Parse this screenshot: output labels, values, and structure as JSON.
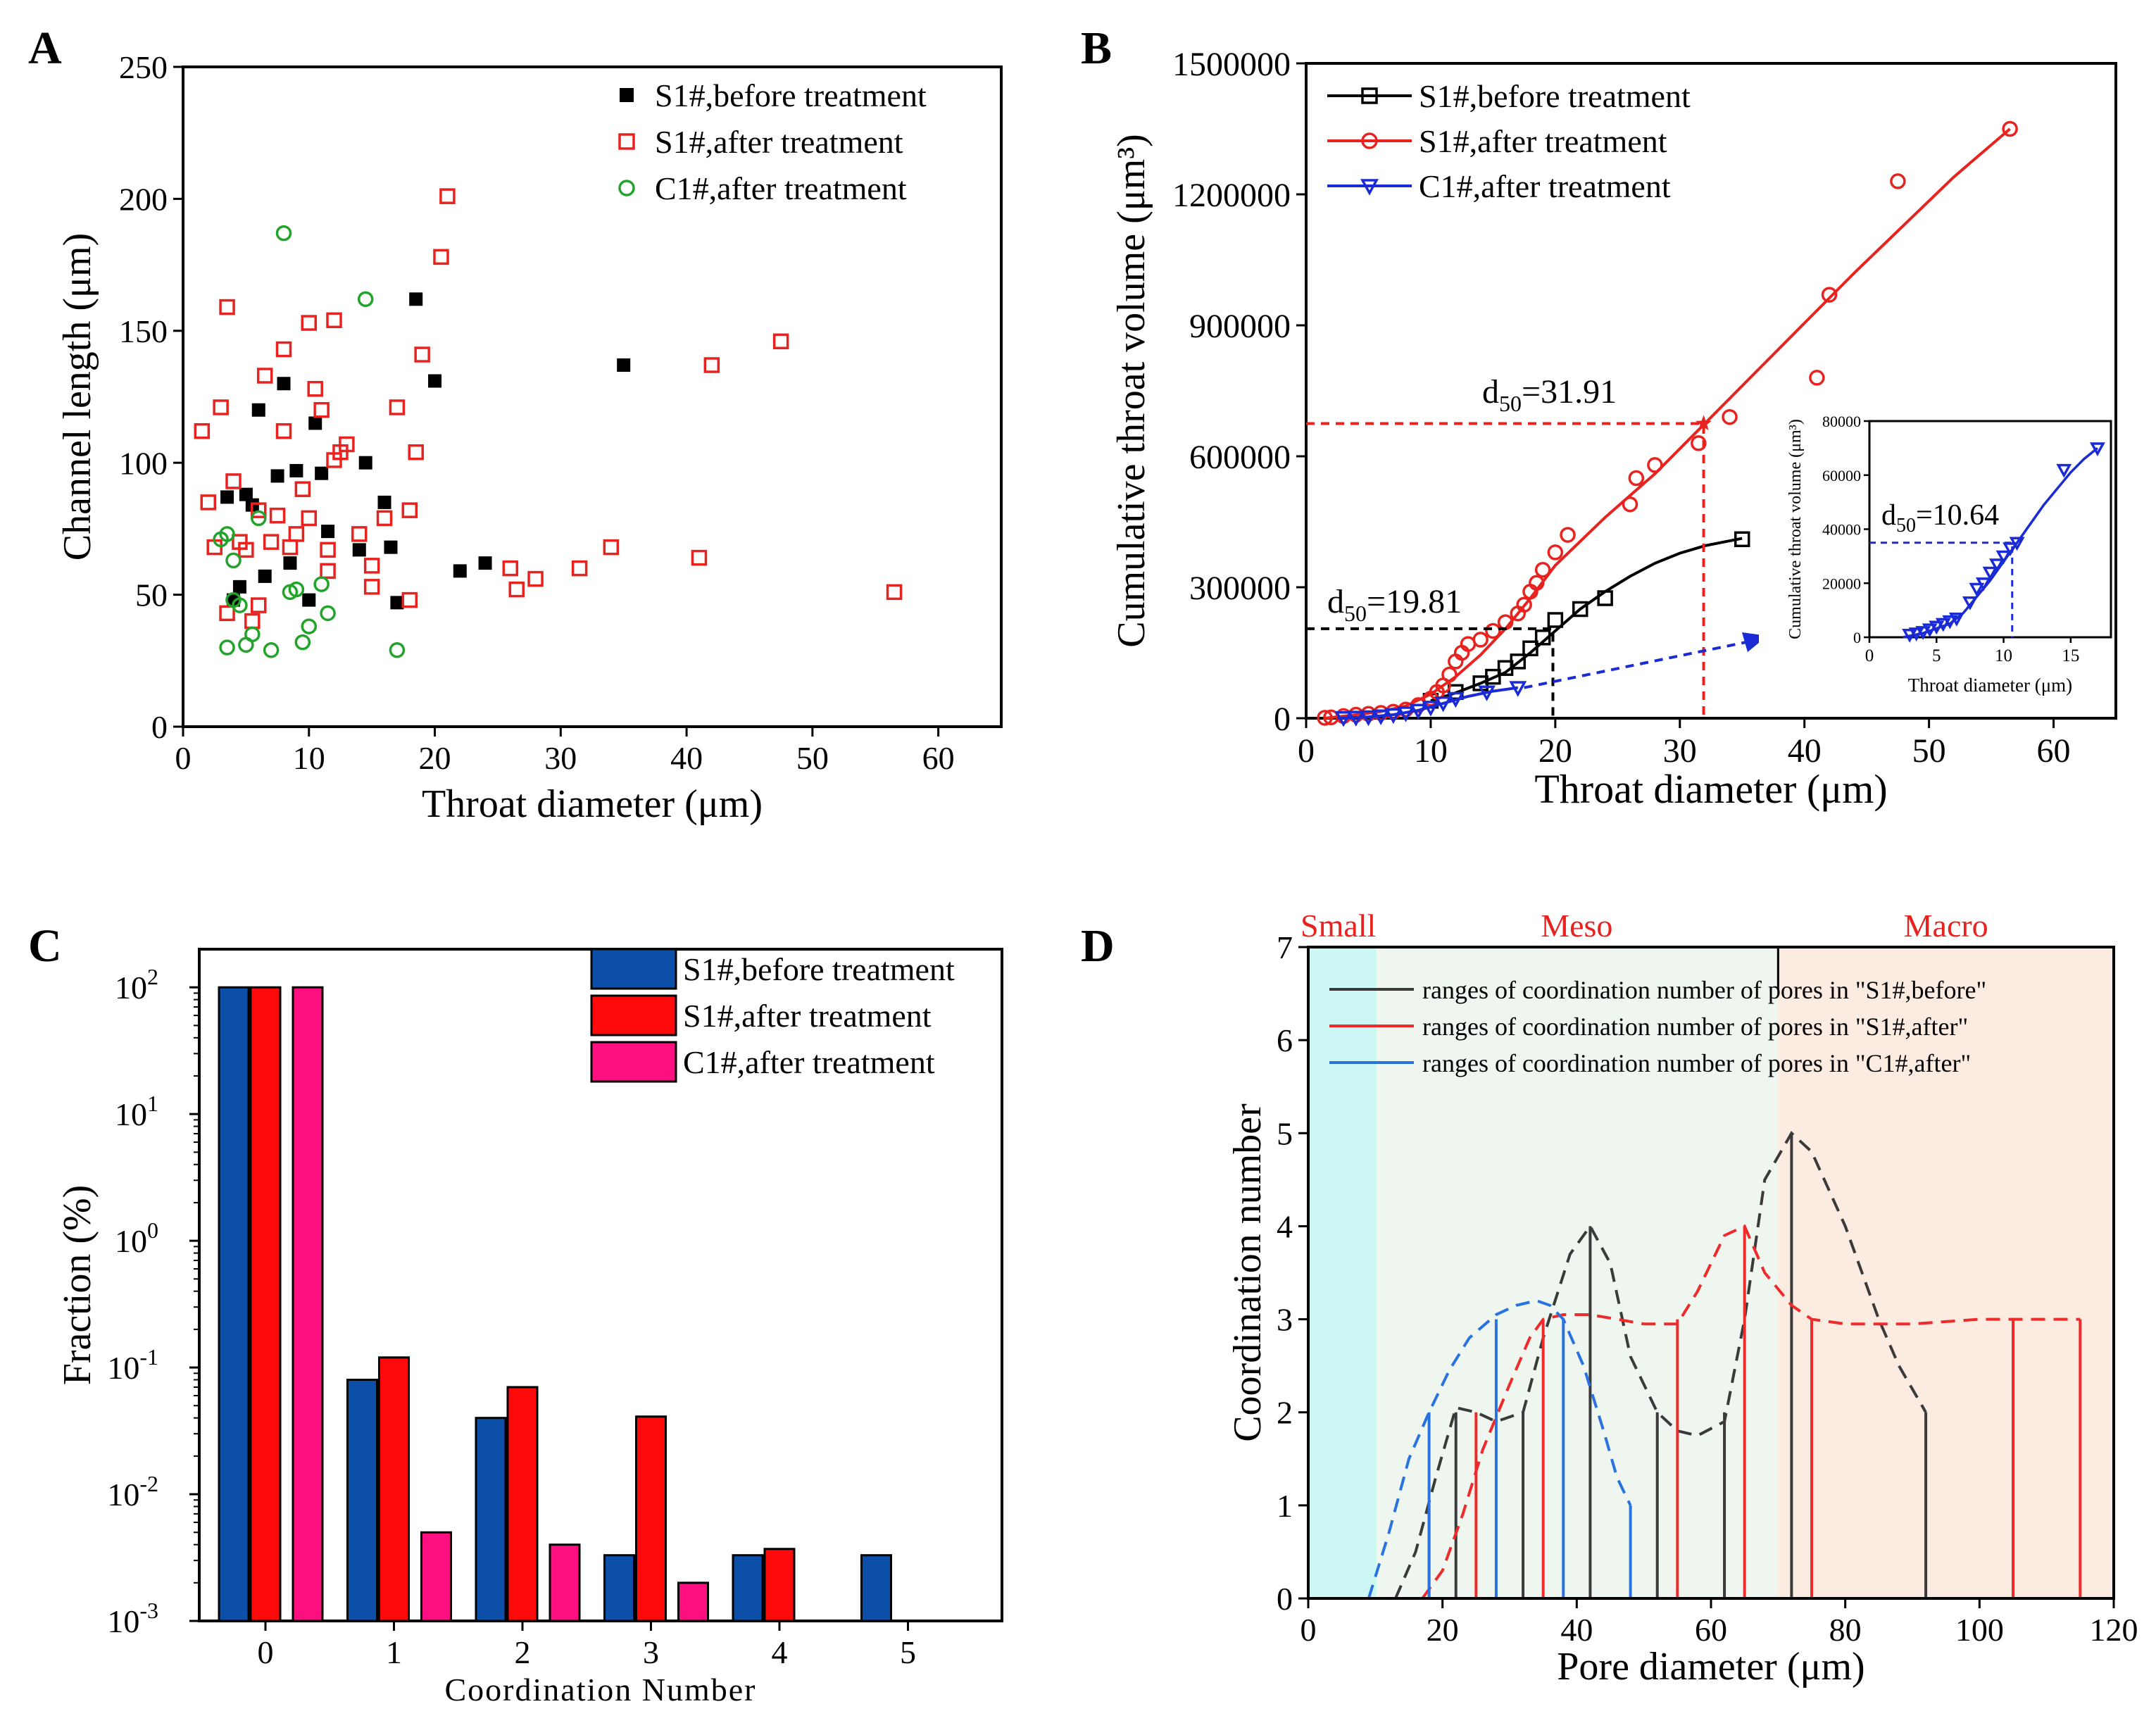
{
  "panel_labels": {
    "a": "A",
    "b": "B",
    "c": "C",
    "d": "D"
  },
  "colors": {
    "black": "#000000",
    "red": "#e8231f",
    "green": "#22a32a",
    "blue": "#1a2bd6",
    "bar_blue": "#0c4fa8",
    "bar_red": "#ff0a0a",
    "bar_pink": "#ff0f7f",
    "dash_gray": "#3a3a3a",
    "dash_red": "#ee2a2a",
    "dash_blue": "#2a72e0",
    "small_bg": "#cdf7f4",
    "meso_bg": "#eef6ef",
    "macro_bg": "#fbebe0"
  },
  "chart_data": [
    {
      "id": "A",
      "type": "scatter",
      "xlabel": "Throat diameter (μm)",
      "ylabel": "Channel length (μm)",
      "xlim": [
        0,
        65
      ],
      "ylim": [
        0,
        250
      ],
      "xticks": [
        0,
        10,
        20,
        30,
        40,
        50,
        60
      ],
      "yticks": [
        0,
        50,
        100,
        150,
        200,
        250
      ],
      "series": [
        {
          "name": "S1#,before treatment",
          "marker": "filled-square",
          "color": "#000000",
          "x": [
            3.5,
            4,
            4.5,
            5,
            5.5,
            6,
            6.5,
            7.5,
            8,
            8.5,
            9,
            10,
            10.5,
            11,
            11.5,
            14,
            14.5,
            16,
            16.5,
            17,
            18.5,
            20,
            22,
            24,
            35
          ],
          "y": [
            87,
            48,
            53,
            88,
            84,
            120,
            57,
            95,
            130,
            62,
            97,
            48,
            115,
            96,
            74,
            67,
            100,
            85,
            68,
            47,
            162,
            131,
            59,
            62,
            137
          ]
        },
        {
          "name": "S1#,after treatment",
          "marker": "open-square",
          "color": "#e8231f",
          "x": [
            1.5,
            2,
            2.5,
            3,
            3.5,
            3.5,
            4,
            4.5,
            5,
            5.5,
            6,
            6,
            6.5,
            7,
            7.5,
            8,
            8,
            8.5,
            9,
            9.5,
            10,
            10,
            10.5,
            11,
            11.5,
            11.5,
            12,
            12,
            12.5,
            13,
            14,
            15,
            15,
            16,
            17,
            18,
            18,
            18.5,
            19,
            20.5,
            21,
            26,
            26.5,
            28,
            31.5,
            34,
            41,
            42,
            47.5,
            56.5
          ],
          "y": [
            112,
            85,
            68,
            121,
            159,
            43,
            93,
            70,
            67,
            40,
            46,
            82,
            133,
            70,
            80,
            143,
            112,
            68,
            73,
            90,
            79,
            153,
            128,
            120,
            67,
            59,
            154,
            101,
            104,
            107,
            73,
            61,
            53,
            79,
            121,
            82,
            48,
            104,
            141,
            178,
            201,
            60,
            52,
            56,
            60,
            68,
            64,
            137,
            146,
            51
          ]
        },
        {
          "name": "C1#,after treatment",
          "marker": "open-circle",
          "color": "#22a32a",
          "x": [
            3,
            3.5,
            3.5,
            4,
            4,
            4.5,
            5,
            5.5,
            6,
            7,
            8,
            8.5,
            9,
            9.5,
            10,
            11,
            11.5,
            14.5,
            17
          ],
          "y": [
            71,
            30,
            73,
            63,
            48,
            46,
            31,
            35,
            79,
            29,
            187,
            51,
            52,
            32,
            38,
            54,
            43,
            162,
            29
          ]
        }
      ]
    },
    {
      "id": "B",
      "type": "line",
      "xlabel": "Throat diameter (μm)",
      "ylabel": "Cumulative throat volume (μm³)",
      "xlim": [
        0,
        65
      ],
      "ylim": [
        0,
        1500000
      ],
      "xticks": [
        0,
        10,
        20,
        30,
        40,
        50,
        60
      ],
      "yticks": [
        0,
        300000,
        600000,
        900000,
        1200000,
        1500000
      ],
      "series": [
        {
          "name": "S1#,before treatment",
          "marker": "open-square",
          "color": "#000000",
          "x": [
            10,
            12,
            14,
            15,
            16,
            17,
            18,
            19,
            20,
            22,
            24,
            35
          ],
          "y": [
            40000,
            60000,
            80000,
            95000,
            115000,
            130000,
            160000,
            185000,
            225000,
            250000,
            275000,
            410000
          ],
          "fit_x": [
            10,
            12,
            14,
            16,
            18,
            20,
            22,
            24,
            26,
            28,
            30,
            32,
            35
          ],
          "fit_y": [
            40000,
            58000,
            80000,
            105000,
            150000,
            200000,
            250000,
            290000,
            325000,
            355000,
            378000,
            395000,
            412000
          ]
        },
        {
          "name": "S1#,after treatment",
          "marker": "open-circle",
          "color": "#e8231f",
          "x": [
            1.5,
            2,
            3,
            4,
            5,
            6,
            7,
            8,
            9,
            10,
            10.5,
            11,
            11.5,
            12,
            12.5,
            13,
            14,
            15,
            16,
            17,
            17.5,
            18,
            18.5,
            19,
            20,
            21,
            26,
            26.5,
            28,
            31.5,
            34,
            41,
            42,
            47.5,
            56.5
          ],
          "y": [
            1000,
            2000,
            5000,
            8000,
            10000,
            12000,
            15000,
            20000,
            30000,
            45000,
            60000,
            75000,
            100000,
            130000,
            150000,
            170000,
            180000,
            200000,
            220000,
            240000,
            260000,
            290000,
            310000,
            340000,
            380000,
            420000,
            490000,
            550000,
            580000,
            630000,
            690000,
            780000,
            970000,
            1230000,
            1350000
          ],
          "fit_x": [
            1.5,
            4,
            6,
            8,
            10,
            12,
            14,
            16,
            18,
            20,
            24,
            28,
            32,
            36,
            40,
            44,
            48,
            52,
            56.5
          ],
          "fit_y": [
            0,
            8000,
            15000,
            28000,
            55000,
            95000,
            145000,
            205000,
            275000,
            350000,
            460000,
            560000,
            675000,
            790000,
            905000,
            1020000,
            1130000,
            1240000,
            1350000
          ]
        },
        {
          "name": "C1#,after treatment",
          "marker": "open-triangle-down",
          "color": "#1a2bd6",
          "x": [
            3,
            4,
            5,
            6,
            7,
            8,
            9,
            10,
            11,
            12,
            14.5,
            17
          ],
          "y": [
            1000,
            2000,
            3000,
            5000,
            8000,
            12000,
            18000,
            25000,
            35000,
            45000,
            60000,
            70000
          ],
          "fit_x": [
            2.5,
            5,
            7,
            9,
            11,
            13,
            15,
            17
          ],
          "fit_y": [
            0,
            3000,
            8000,
            18000,
            34000,
            50000,
            62000,
            70000
          ]
        }
      ],
      "annotations": {
        "d50_s1_before": "d",
        "d50_s1_before_sub": "50",
        "d50_s1_before_val": "=19.81",
        "d50_s1_before_x": 19.81,
        "d50_s1_before_y": 205000,
        "d50_s1_after": "d",
        "d50_s1_after_sub": "50",
        "d50_s1_after_val": "=31.91",
        "d50_s1_after_x": 31.91,
        "d50_s1_after_y": 675000
      },
      "inset": {
        "xlabel": "Throat diameter (μm)",
        "ylabel": "Cumulative throat volume (μm³)",
        "xlim": [
          0,
          18
        ],
        "ylim": [
          0,
          80000
        ],
        "xticks": [
          0,
          5,
          10,
          15
        ],
        "yticks": [
          0,
          20000,
          40000,
          60000,
          80000
        ],
        "x": [
          3,
          3.5,
          4,
          4.5,
          5,
          5.5,
          6,
          6.5,
          7.5,
          8,
          8.5,
          9,
          9.5,
          10,
          10.5,
          11,
          14.5,
          17
        ],
        "y": [
          1000,
          1500,
          2000,
          3000,
          4000,
          5000,
          6000,
          7000,
          13000,
          18000,
          20000,
          24000,
          27000,
          30000,
          33000,
          35000,
          62000,
          70000
        ],
        "fit_x": [
          2.5,
          4,
          6,
          7,
          8,
          9,
          10,
          11,
          12,
          13,
          14,
          15,
          16,
          17
        ],
        "fit_y": [
          0,
          1500,
          5000,
          9000,
          15000,
          21000,
          28000,
          35000,
          42000,
          49000,
          55000,
          61000,
          66000,
          70000
        ],
        "d50": "d",
        "d50_sub": "50",
        "d50_val": "=10.64",
        "d50_x": 10.64,
        "d50_y": 35000
      }
    },
    {
      "id": "C",
      "type": "bar",
      "xlabel": "Coordination Number",
      "ylabel": "Fraction (%)",
      "yscale": "log",
      "categories": [
        "0",
        "1",
        "2",
        "3",
        "4",
        "5"
      ],
      "ylim": [
        0.001,
        200
      ],
      "yticks": [
        {
          "base": "10",
          "exp": "-3"
        },
        {
          "base": "10",
          "exp": "-2"
        },
        {
          "base": "10",
          "exp": "-1"
        },
        {
          "base": "10",
          "exp": "0"
        },
        {
          "base": "10",
          "exp": "1"
        },
        {
          "base": "10",
          "exp": "2"
        }
      ],
      "series": [
        {
          "name": "S1#,before treatment",
          "color": "#0c4fa8",
          "values": [
            100,
            0.08,
            0.04,
            0.0033,
            0.0033,
            0.0033
          ]
        },
        {
          "name": "S1#,after treatment",
          "color": "#ff0a0a",
          "values": [
            100,
            0.12,
            0.07,
            0.041,
            0.0037,
            null
          ]
        },
        {
          "name": "C1#,after treatment",
          "color": "#ff0f7f",
          "values": [
            100,
            0.005,
            0.004,
            0.002,
            null,
            null
          ]
        }
      ]
    },
    {
      "id": "D",
      "type": "line",
      "xlabel": "Pore diameter (μm)",
      "ylabel": "Coordination number",
      "xlim": [
        0,
        120
      ],
      "ylim": [
        0,
        7
      ],
      "xticks": [
        0,
        20,
        40,
        60,
        80,
        100,
        120
      ],
      "yticks": [
        0,
        1,
        2,
        3,
        4,
        5,
        6,
        7
      ],
      "regions": [
        {
          "name": "Small",
          "from": 0,
          "to": 10
        },
        {
          "name": "Meso",
          "from": 10,
          "to": 70
        },
        {
          "name": "Macro",
          "from": 70,
          "to": 120
        }
      ],
      "series": [
        {
          "name": "ranges of coordination number of pores in \"S1#,before\"",
          "color": "#3a3a3a",
          "stems_x": [
            22,
            32,
            42,
            52,
            62,
            72,
            92
          ],
          "stems_y": [
            2,
            2,
            4,
            2,
            2,
            5,
            2
          ],
          "curve_x": [
            13,
            16,
            19,
            22,
            25,
            28,
            32,
            35,
            39,
            42,
            45,
            48,
            52,
            55,
            58,
            62,
            65,
            68,
            72,
            75,
            80,
            85,
            88,
            92
          ],
          "curve_y": [
            0,
            0.5,
            1.3,
            2.05,
            2.0,
            1.9,
            2.0,
            2.8,
            3.7,
            4.0,
            3.6,
            2.6,
            2.0,
            1.8,
            1.75,
            1.9,
            3.0,
            4.5,
            5.0,
            4.8,
            4.0,
            3.0,
            2.5,
            2.0
          ]
        },
        {
          "name": "ranges of coordination number of pores in \"S1#,after\"",
          "color": "#ee2a2a",
          "stems_x": [
            18,
            25,
            35,
            55,
            65,
            75,
            105,
            115
          ],
          "stems_y": [
            1,
            2,
            3,
            3,
            4,
            3,
            3,
            3
          ],
          "curve_x": [
            17,
            20,
            23,
            26,
            30,
            33,
            35,
            38,
            42,
            46,
            50,
            55,
            58,
            62,
            65,
            68,
            72,
            75,
            80,
            90,
            100,
            105,
            115
          ],
          "curve_y": [
            0,
            0.3,
            0.9,
            1.6,
            2.3,
            2.8,
            3.0,
            3.05,
            3.05,
            3.0,
            2.95,
            2.95,
            3.3,
            3.9,
            4.0,
            3.5,
            3.15,
            3.0,
            2.95,
            2.95,
            3.0,
            3.0,
            3.0
          ]
        },
        {
          "name": "ranges of coordination number of pores in \"C1#,after\"",
          "color": "#2a72e0",
          "stems_x": [
            18,
            28,
            38,
            48
          ],
          "stems_y": [
            2,
            3,
            3,
            1
          ],
          "curve_x": [
            9,
            12,
            15,
            18,
            21,
            24,
            28,
            31,
            34,
            36,
            38,
            41,
            44,
            46,
            48
          ],
          "curve_y": [
            0,
            0.7,
            1.5,
            2.0,
            2.45,
            2.8,
            3.05,
            3.15,
            3.2,
            3.15,
            3.0,
            2.5,
            1.8,
            1.3,
            1.0
          ]
        }
      ]
    }
  ]
}
